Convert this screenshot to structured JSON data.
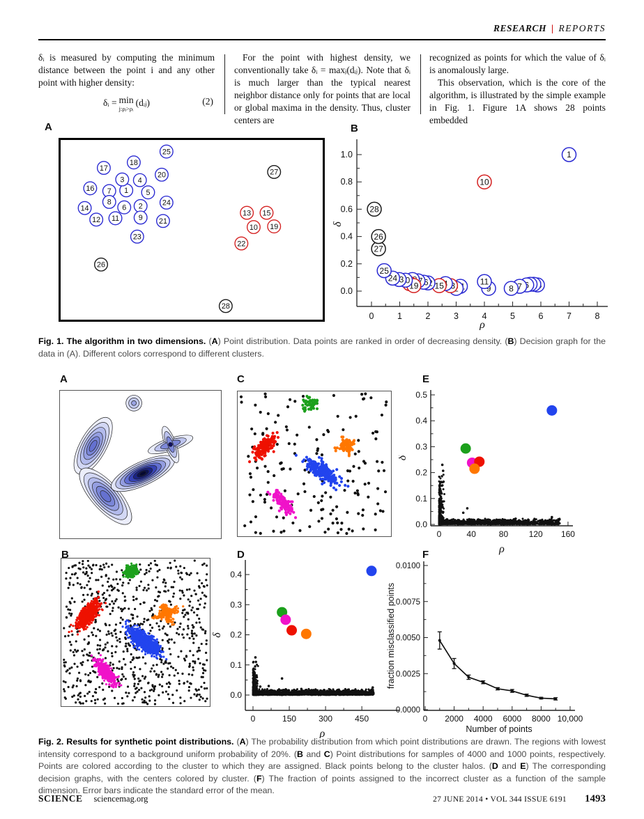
{
  "header": {
    "section": "RESEARCH",
    "divider": "|",
    "subsection": "REPORTS"
  },
  "columns": {
    "col1": {
      "para": "δᵢ is measured by computing the minimum distance between the point i and any other point with higher density:",
      "eq_lhs": "δᵢ =",
      "eq_op": "min",
      "eq_cond": "j:ρⱼ>ρᵢ",
      "eq_rhs": "(dᵢⱼ)",
      "eq_num": "(2)"
    },
    "col2": {
      "para": "For the point with highest density, we conventionally take δᵢ = maxⱼ(dᵢⱼ). Note that δᵢ is much larger than the typical nearest neighbor distance only for points that are local or global maxima in the density. Thus, cluster centers are"
    },
    "col3": {
      "para1": "recognized as points for which the value of δᵢ is anomalously large.",
      "para2": "This observation, which is the core of the algorithm, is illustrated by the simple example in Fig. 1. Figure 1A shows 28 points embedded"
    }
  },
  "fig1": {
    "label_a": "A",
    "label_b": "B",
    "caption": [
      {
        "t": "Fig. 1. The algorithm in two dimensions. ",
        "b": 1
      },
      {
        "t": "("
      },
      {
        "t": "A",
        "b": 1
      },
      {
        "t": ") Point distribution. Data points are ranked in order of decreasing density. ("
      },
      {
        "t": "B",
        "b": 1
      },
      {
        "t": ") Decision graph for the data in (A). Different colors correspond to different clusters."
      }
    ]
  },
  "fig2": {
    "labels": {
      "a": "A",
      "b": "B",
      "c": "C",
      "d": "D",
      "e": "E",
      "f": "F"
    },
    "caption": [
      {
        "t": "Fig. 2. Results for synthetic point distributions. ",
        "b": 1
      },
      {
        "t": "("
      },
      {
        "t": "A",
        "b": 1
      },
      {
        "t": ") The probability distribution from which point distributions are drawn. The regions with lowest intensity correspond to a background uniform probability of 20%. ("
      },
      {
        "t": "B",
        "b": 1
      },
      {
        "t": " and "
      },
      {
        "t": "C",
        "b": 1
      },
      {
        "t": ") Point distributions for samples of 4000 and 1000 points, respectively. Points are colored according to the cluster to which they are assigned. Black points belong to the cluster halos. ("
      },
      {
        "t": "D",
        "b": 1
      },
      {
        "t": " and "
      },
      {
        "t": "E",
        "b": 1
      },
      {
        "t": ") The corresponding decision graphs, with the centers colored by cluster. ("
      },
      {
        "t": "F",
        "b": 1
      },
      {
        "t": ") The fraction of points assigned to the incorrect cluster as a function of the sample dimension. Error bars indicate the standard error of the mean."
      }
    ]
  },
  "footer": {
    "journal": "SCIENCE",
    "site": "sciencemag.org",
    "issue": "27 JUNE 2014 • VOL 344 ISSUE 6191",
    "page": "1493"
  },
  "chart_data": [
    {
      "id": "fig1a",
      "type": "scatter",
      "title": "Point distribution, 28 labeled points",
      "colors": {
        "b": "#2a2ad2",
        "r": "#d42020",
        "k": "#1a1a1a"
      },
      "points": [
        {
          "n": 1,
          "x": 95,
          "y": 74
        },
        {
          "n": 2,
          "x": 116,
          "y": 97
        },
        {
          "n": 3,
          "x": 89,
          "y": 58
        },
        {
          "n": 4,
          "x": 115,
          "y": 59
        },
        {
          "n": 5,
          "x": 127,
          "y": 77
        },
        {
          "n": 6,
          "x": 92,
          "y": 99
        },
        {
          "n": 7,
          "x": 70,
          "y": 75
        },
        {
          "n": 8,
          "x": 70,
          "y": 91
        },
        {
          "n": 9,
          "x": 116,
          "y": 114
        },
        {
          "n": 10,
          "x": 282,
          "y": 128,
          "c": "r"
        },
        {
          "n": 11,
          "x": 79,
          "y": 115
        },
        {
          "n": 12,
          "x": 51,
          "y": 117
        },
        {
          "n": 13,
          "x": 272,
          "y": 107,
          "c": "r"
        },
        {
          "n": 14,
          "x": 34,
          "y": 100
        },
        {
          "n": 15,
          "x": 301,
          "y": 107,
          "c": "r"
        },
        {
          "n": 16,
          "x": 42,
          "y": 71
        },
        {
          "n": 17,
          "x": 62,
          "y": 41
        },
        {
          "n": 18,
          "x": 106,
          "y": 33
        },
        {
          "n": 19,
          "x": 312,
          "y": 127,
          "c": "r"
        },
        {
          "n": 20,
          "x": 147,
          "y": 51
        },
        {
          "n": 21,
          "x": 149,
          "y": 119
        },
        {
          "n": 22,
          "x": 264,
          "y": 152,
          "c": "r"
        },
        {
          "n": 23,
          "x": 111,
          "y": 142
        },
        {
          "n": 24,
          "x": 154,
          "y": 92
        },
        {
          "n": 25,
          "x": 154,
          "y": 17
        },
        {
          "n": 26,
          "x": 58,
          "y": 183,
          "c": "k"
        },
        {
          "n": 27,
          "x": 312,
          "y": 47,
          "c": "k"
        },
        {
          "n": 28,
          "x": 241,
          "y": 244,
          "c": "k"
        }
      ]
    },
    {
      "id": "fig1b",
      "type": "scatter",
      "title": "Decision graph",
      "xlabel": "ρ",
      "ylabel": "δ",
      "xlim": [
        0,
        8
      ],
      "ylim": [
        0,
        1.05
      ],
      "xticks": [
        "0",
        "1",
        "2",
        "3",
        "4",
        "5",
        "6",
        "7",
        "8"
      ],
      "yticks": [
        "0.0",
        "0.2",
        "0.4",
        "0.6",
        "0.8",
        "1.0"
      ],
      "colors": {
        "b": "#2a2ad2",
        "r": "#d42020",
        "k": "#1a1a1a"
      },
      "points": [
        {
          "n": 14,
          "r": 5.88,
          "d": 0.045
        },
        {
          "n": 3,
          "r": 5.75,
          "d": 0.05
        },
        {
          "n": 5,
          "r": 5.62,
          "d": 0.05
        },
        {
          "n": 6,
          "r": 5.5,
          "d": 0.045
        },
        {
          "n": 7,
          "r": 5.25,
          "d": 0.035
        },
        {
          "n": 8,
          "r": 4.95,
          "d": 0.02
        },
        {
          "n": 9,
          "r": 4.15,
          "d": 0.02
        },
        {
          "n": 11,
          "r": 4.0,
          "d": 0.07
        },
        {
          "n": 21,
          "r": 3.15,
          "d": 0.035
        },
        {
          "n": 2,
          "r": 3.0,
          "d": 0.02
        },
        {
          "n": 13,
          "r": 2.8,
          "d": 0.04,
          "c": "r"
        },
        {
          "n": 4,
          "r": 2.62,
          "d": 0.055
        },
        {
          "n": 15,
          "r": 2.4,
          "d": 0.04,
          "c": "r"
        },
        {
          "n": 12,
          "r": 2.0,
          "d": 0.06
        },
        {
          "n": 16,
          "r": 1.85,
          "d": 0.065
        },
        {
          "n": 17,
          "r": 1.65,
          "d": 0.075
        },
        {
          "n": 18,
          "r": 1.45,
          "d": 0.085
        },
        {
          "n": 22,
          "r": 1.35,
          "d": 0.055,
          "c": "r"
        },
        {
          "n": 19,
          "r": 1.5,
          "d": 0.04,
          "c": "r"
        },
        {
          "n": 20,
          "r": 1.2,
          "d": 0.08
        },
        {
          "n": 23,
          "r": 0.98,
          "d": 0.085
        },
        {
          "n": 24,
          "r": 0.75,
          "d": 0.095
        },
        {
          "n": 25,
          "r": 0.45,
          "d": 0.15
        },
        {
          "n": 27,
          "r": 0.25,
          "d": 0.31,
          "c": "k"
        },
        {
          "n": 26,
          "r": 0.25,
          "d": 0.4,
          "c": "k"
        },
        {
          "n": 28,
          "r": 0.1,
          "d": 0.6,
          "c": "k"
        },
        {
          "n": 10,
          "r": 4.0,
          "d": 0.8,
          "c": "r"
        },
        {
          "n": 1,
          "r": 7.0,
          "d": 1.0
        }
      ]
    },
    {
      "id": "fig2b",
      "type": "scatter-clusters",
      "title": "Sample of 4000 points",
      "seed": 42,
      "dot": 1.6,
      "noise_n": 780,
      "clusters": [
        {
          "color": "#1ca01c",
          "cx": 0.47,
          "cy": 0.085,
          "sl": 0.045,
          "ss": 0.036,
          "a": -20,
          "n": 260
        },
        {
          "color": "#ee1100",
          "cx": 0.18,
          "cy": 0.38,
          "sl": 0.105,
          "ss": 0.042,
          "a": -52,
          "n": 640
        },
        {
          "color": "#2244ee",
          "cx": 0.56,
          "cy": 0.56,
          "sl": 0.125,
          "ss": 0.048,
          "a": 39,
          "n": 900
        },
        {
          "color": "#ff7700",
          "cx": 0.71,
          "cy": 0.37,
          "sl": 0.075,
          "ss": 0.022,
          "a": -20,
          "n": 175
        },
        {
          "color": "#ff7700",
          "cx": 0.71,
          "cy": 0.37,
          "sl": 0.065,
          "ss": 0.022,
          "a": 70,
          "n": 175
        },
        {
          "color": "#f012c9",
          "cx": 0.3,
          "cy": 0.77,
          "sl": 0.095,
          "ss": 0.035,
          "a": 52,
          "n": 520
        }
      ]
    },
    {
      "id": "fig2c",
      "type": "scatter-clusters",
      "title": "Sample of 1000 points",
      "seed": 7,
      "dot": 2.1,
      "noise_n": 165,
      "clusters": [
        {
          "color": "#1ca01c",
          "cx": 0.47,
          "cy": 0.085,
          "sl": 0.05,
          "ss": 0.04,
          "a": -20,
          "n": 55
        },
        {
          "color": "#ee1100",
          "cx": 0.18,
          "cy": 0.38,
          "sl": 0.105,
          "ss": 0.045,
          "a": -52,
          "n": 150
        },
        {
          "color": "#2244ee",
          "cx": 0.56,
          "cy": 0.56,
          "sl": 0.125,
          "ss": 0.05,
          "a": 39,
          "n": 215
        },
        {
          "color": "#ff7700",
          "cx": 0.71,
          "cy": 0.37,
          "sl": 0.08,
          "ss": 0.026,
          "a": -20,
          "n": 48
        },
        {
          "color": "#ff7700",
          "cx": 0.71,
          "cy": 0.37,
          "sl": 0.07,
          "ss": 0.026,
          "a": 70,
          "n": 48
        },
        {
          "color": "#f012c9",
          "cx": 0.3,
          "cy": 0.77,
          "sl": 0.095,
          "ss": 0.038,
          "a": 52,
          "n": 125
        }
      ]
    },
    {
      "id": "fig2d",
      "type": "decision",
      "title": "Decision graph, 4000 points",
      "xlabel": "ρ",
      "ylabel": "δ",
      "xmax": 500,
      "seed": 13,
      "xticks": [
        {
          "v": 0,
          "l": "0"
        },
        {
          "v": 150,
          "l": "150"
        },
        {
          "v": 300,
          "l": "300"
        },
        {
          "v": 450,
          "l": "450"
        }
      ],
      "yticks": [
        {
          "v": 0.0,
          "l": "0.0"
        },
        {
          "v": 0.1,
          "l": "0.1"
        },
        {
          "v": 0.2,
          "l": "0.2"
        },
        {
          "v": 0.3,
          "l": "0.3"
        },
        {
          "v": 0.4,
          "l": "0.4"
        }
      ],
      "noise": {
        "n": 1700,
        "dmax": 0.02,
        "spike_n": 260,
        "spike_dmax": 0.115
      },
      "extras": [
        [
          10,
          0.125
        ],
        [
          12,
          0.11
        ],
        [
          9,
          0.095
        ],
        [
          14,
          0.06
        ],
        [
          120,
          0.055
        ],
        [
          65,
          0.03
        ],
        [
          30,
          0.028
        ],
        [
          495,
          0.025
        ],
        [
          200,
          0.02
        ]
      ],
      "centers": [
        {
          "c": "#1ca01c",
          "x": 120,
          "y": 0.275
        },
        {
          "c": "#f012c9",
          "x": 135,
          "y": 0.25
        },
        {
          "c": "#ee1100",
          "x": 160,
          "y": 0.215
        },
        {
          "c": "#ff7700",
          "x": 220,
          "y": 0.203
        },
        {
          "c": "#2244ee",
          "x": 490,
          "y": 0.412
        }
      ]
    },
    {
      "id": "fig2e",
      "type": "decision",
      "title": "Decision graph, 1000 points",
      "xlabel": "ρ",
      "ylabel": "δ",
      "xmax": 150,
      "seed": 99,
      "xticks": [
        {
          "v": 0,
          "l": "0"
        },
        {
          "v": 40,
          "l": "40"
        },
        {
          "v": 80,
          "l": "80"
        },
        {
          "v": 120,
          "l": "120"
        },
        {
          "v": 160,
          "l": "160"
        }
      ],
      "yticks": [
        {
          "v": 0.0,
          "l": "0.0"
        },
        {
          "v": 0.1,
          "l": "0.1"
        },
        {
          "v": 0.2,
          "l": "0.2"
        },
        {
          "v": 0.3,
          "l": "0.3"
        },
        {
          "v": 0.4,
          "l": "0.4"
        },
        {
          "v": 0.5,
          "l": "0.5"
        }
      ],
      "noise": {
        "n": 1300,
        "dmax": 0.022,
        "spike_n": 300,
        "spike_dmax": 0.21
      },
      "extras": [
        [
          4,
          0.23
        ],
        [
          5,
          0.207
        ],
        [
          5.5,
          0.165
        ],
        [
          2,
          0.12
        ],
        [
          30,
          0.045
        ],
        [
          35,
          0.062
        ],
        [
          140,
          0.028
        ],
        [
          95,
          0.022
        ],
        [
          60,
          0.018
        ]
      ],
      "centers": [
        {
          "c": "#1ca01c",
          "x": 33,
          "y": 0.293
        },
        {
          "c": "#f012c9",
          "x": 41,
          "y": 0.238
        },
        {
          "c": "#ee1100",
          "x": 50,
          "y": 0.242
        },
        {
          "c": "#ff7700",
          "x": 44,
          "y": 0.215
        },
        {
          "c": "#2244ee",
          "x": 140,
          "y": 0.44
        }
      ]
    },
    {
      "id": "fig2f",
      "type": "line",
      "title": "Fraction misclassified vs sample size",
      "xlabel": "Number of points",
      "ylabel": "fraction misclassified points",
      "x": [
        1000,
        2000,
        3000,
        4000,
        5000,
        6000,
        7000,
        8000,
        9000
      ],
      "y": [
        0.0048,
        0.0032,
        0.00225,
        0.0019,
        0.00145,
        0.0013,
        0.001,
        0.0008,
        0.00075
      ],
      "err": [
        0.0006,
        0.00035,
        0.00015,
        0.0001,
        8e-05,
        0.0001,
        8e-05,
        6e-05,
        8e-05
      ],
      "xticks": [
        {
          "v": 0,
          "l": "0"
        },
        {
          "v": 2000,
          "l": "2000"
        },
        {
          "v": 4000,
          "l": "4000"
        },
        {
          "v": 6000,
          "l": "6000"
        },
        {
          "v": 8000,
          "l": "8000"
        },
        {
          "v": 10000,
          "l": "10,000"
        }
      ],
      "yticks": [
        {
          "v": 0.0,
          "l": "0.0000"
        },
        {
          "v": 0.0025,
          "l": "0.0025"
        },
        {
          "v": 0.005,
          "l": "0.0050"
        },
        {
          "v": 0.0075,
          "l": "0.0075"
        },
        {
          "v": 0.01,
          "l": "0.0100"
        }
      ]
    }
  ]
}
